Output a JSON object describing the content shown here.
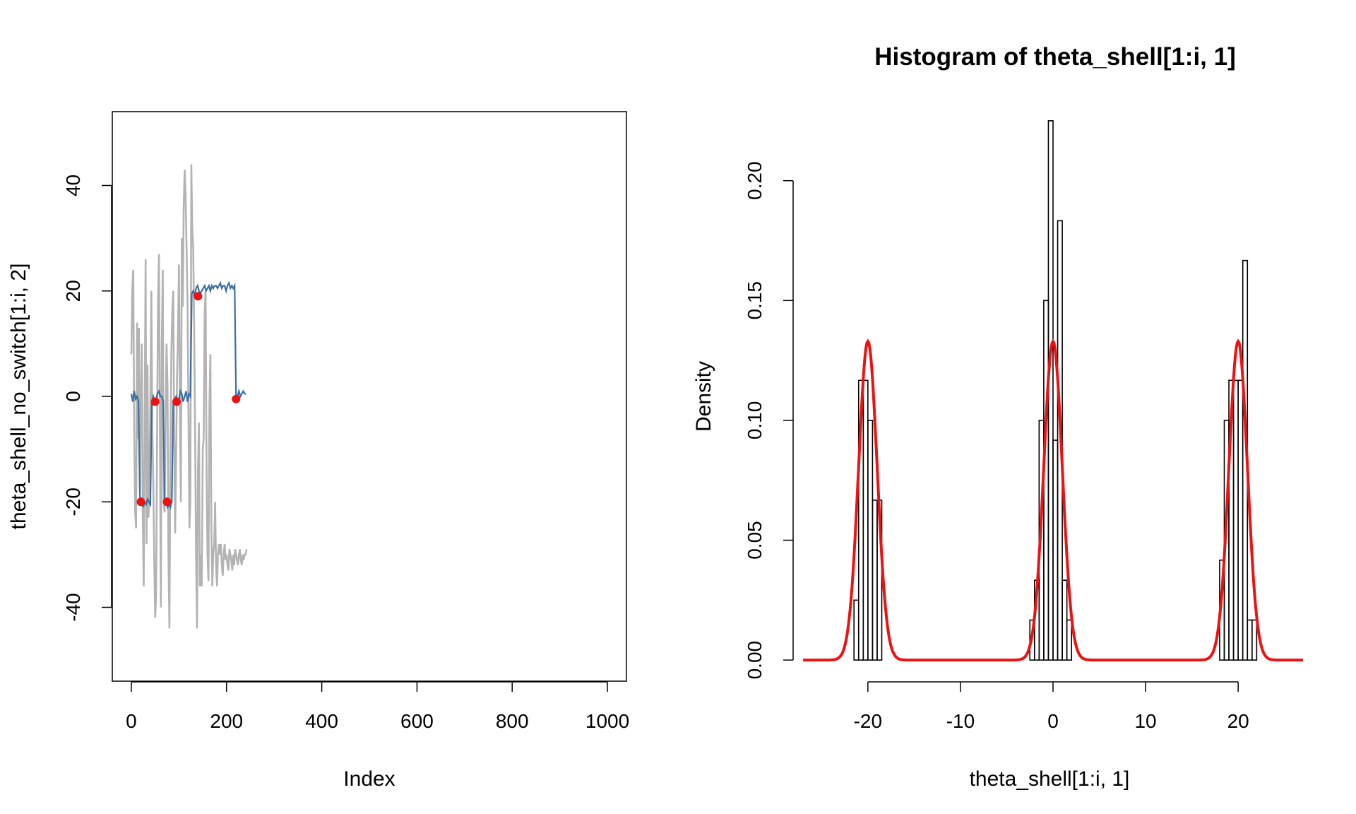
{
  "chart_data": [
    {
      "type": "line",
      "title": "",
      "xlabel": "Index",
      "ylabel": "theta_shell_no_switch[1:i, 2]",
      "xlim": [
        -40,
        1040
      ],
      "ylim": [
        -54,
        54
      ],
      "x_ticks": [
        0,
        200,
        400,
        600,
        800,
        1000
      ],
      "x_tick_labels": [
        "0",
        "200",
        "400",
        "600",
        "800",
        "1000"
      ],
      "y_ticks": [
        -40,
        -20,
        0,
        20,
        40
      ],
      "y_tick_labels": [
        "-40",
        "-20",
        "0",
        "20",
        "40"
      ],
      "grid": false,
      "series": [
        {
          "color": "#b3b3b3",
          "x": [
            0,
            2,
            4,
            6,
            8,
            10,
            12,
            14,
            16,
            18,
            20,
            22,
            24,
            26,
            28,
            30,
            32,
            34,
            36,
            38,
            40,
            42,
            44,
            46,
            48,
            50,
            52,
            54,
            56,
            58,
            60,
            62,
            64,
            66,
            68,
            70,
            72,
            74,
            76,
            78,
            80,
            82,
            84,
            86,
            88,
            90,
            92,
            94,
            96,
            98,
            100,
            102,
            104,
            106,
            108,
            110,
            112,
            114,
            116,
            118,
            120,
            122,
            124,
            126,
            128,
            130,
            132,
            134,
            136,
            138,
            140,
            142,
            144,
            146,
            148,
            150,
            152,
            154,
            156,
            158,
            160,
            162,
            164,
            166,
            168,
            170,
            172,
            174,
            176,
            178,
            180,
            182,
            184,
            186,
            188,
            190,
            192,
            194,
            196,
            198,
            200,
            202,
            204,
            206,
            208,
            210,
            212,
            214,
            216,
            218,
            220,
            222,
            224,
            226,
            228,
            230,
            232,
            234,
            236,
            238,
            240,
            242
          ],
          "y": [
            8,
            20,
            24,
            -6,
            -22,
            -25,
            14,
            -8,
            13,
            -18,
            -2,
            10,
            -22,
            -36,
            -5,
            26,
            -28,
            6,
            -23,
            -18,
            -1,
            20,
            -6,
            -16,
            -30,
            -42,
            -38,
            -8,
            18,
            27,
            -5,
            -40,
            10,
            24,
            -20,
            -22,
            -5,
            10,
            2,
            -30,
            -44,
            -12,
            8,
            16,
            20,
            -6,
            -26,
            -12,
            4,
            12,
            25,
            -2,
            -20,
            30,
            17,
            36,
            43,
            38,
            28,
            18,
            -4,
            -25,
            -20,
            44,
            32,
            28,
            13,
            -8,
            -30,
            -44,
            -14,
            -5,
            -36,
            -30,
            -36,
            -10,
            -8,
            16,
            20,
            -15,
            -30,
            -35,
            -2,
            8,
            -24,
            -36,
            -30,
            -28,
            -20,
            -32,
            -36,
            -30,
            -28,
            -30,
            -28,
            -32,
            -34,
            -30,
            -28,
            -31,
            -30,
            -32,
            -33,
            -29,
            -30,
            -31,
            -33,
            -30,
            -32,
            -29,
            -30,
            -31,
            -32,
            -30,
            -29,
            -31,
            -32,
            -30,
            -31,
            -30,
            -30,
            -29
          ]
        },
        {
          "color": "#3a6ea5",
          "x": [
            0,
            3,
            6,
            9,
            12,
            15,
            18,
            20,
            22,
            25,
            28,
            31,
            34,
            37,
            40,
            43,
            46,
            49,
            52,
            55,
            58,
            61,
            64,
            67,
            70,
            73,
            76,
            79,
            82,
            85,
            88,
            91,
            94,
            97,
            100,
            103,
            106,
            109,
            112,
            115,
            118,
            121,
            124,
            127,
            130,
            133,
            136,
            139,
            142,
            145,
            148,
            151,
            154,
            157,
            160,
            163,
            166,
            169,
            172,
            175,
            178,
            181,
            184,
            187,
            190,
            193,
            196,
            199,
            202,
            205,
            208,
            211,
            214,
            217,
            220,
            223,
            226,
            229,
            232,
            235,
            238,
            241
          ],
          "y": [
            0.5,
            -1,
            1,
            -0.5,
            0,
            -1,
            -19,
            -20,
            -19.5,
            -21,
            -20,
            -20.5,
            -19.5,
            -20,
            -20.5,
            -1,
            0,
            -1,
            -0.5,
            0.5,
            1,
            0,
            0,
            -1,
            -20,
            -19.5,
            -21,
            -20.5,
            -21,
            -20,
            -1,
            -0.5,
            0,
            -1,
            -0.5,
            1,
            0.5,
            -1,
            0,
            1,
            -1,
            0.5,
            0,
            19.5,
            20,
            19,
            20.5,
            21,
            20,
            19.5,
            20,
            20.5,
            21,
            20,
            20.5,
            21,
            20,
            21,
            20.5,
            21,
            21,
            20.5,
            21,
            21.5,
            20.5,
            21,
            21,
            20,
            21,
            21.5,
            20.5,
            21,
            20.5,
            21,
            -0.5,
            0,
            1,
            0,
            0.5,
            1,
            0.5,
            0.5
          ]
        }
      ],
      "points": {
        "color": "#ee1111",
        "x": [
          20,
          50,
          75,
          95,
          140,
          220
        ],
        "y": [
          -20,
          -1,
          -20,
          -1,
          19,
          -0.5
        ]
      }
    },
    {
      "type": "bar",
      "title": "Histogram of theta_shell[1:i, 1]",
      "xlabel": "theta_shell[1:i, 1]",
      "ylabel": "Density",
      "xlim": [
        -28,
        28
      ],
      "ylim": [
        -0.0088,
        0.2288
      ],
      "x_ticks": [
        -20,
        -10,
        0,
        10,
        20
      ],
      "x_tick_labels": [
        "-20",
        "-10",
        "0",
        "10",
        "20"
      ],
      "y_ticks": [
        0,
        0.05,
        0.1,
        0.15,
        0.2
      ],
      "y_tick_labels": [
        "0.00",
        "0.05",
        "0.10",
        "0.15",
        "0.20"
      ],
      "grid": false,
      "bin_width": 0.5,
      "bins": [
        [
          -21.5,
          0.025
        ],
        [
          -21.0,
          0.1167
        ],
        [
          -20.5,
          0.1167
        ],
        [
          -20.0,
          0.1
        ],
        [
          -19.5,
          0.0667
        ],
        [
          -19.0,
          0.0667
        ],
        [
          -2.5,
          0.0167
        ],
        [
          -2.0,
          0.0333
        ],
        [
          -1.5,
          0.1
        ],
        [
          -1.0,
          0.15
        ],
        [
          -0.5,
          0.225
        ],
        [
          0.0,
          0.0917
        ],
        [
          0.5,
          0.1833
        ],
        [
          1.0,
          0.0333
        ],
        [
          1.5,
          0.0167
        ],
        [
          18.0,
          0.0417
        ],
        [
          18.5,
          0.1
        ],
        [
          19.0,
          0.1167
        ],
        [
          19.5,
          0.1167
        ],
        [
          20.0,
          0.1167
        ],
        [
          20.5,
          0.1667
        ],
        [
          21.0,
          0.0167
        ],
        [
          21.5,
          0.0167
        ]
      ],
      "density_curve": {
        "color": "#ee1111",
        "mixture_means": [
          -20,
          0,
          20
        ],
        "mixture_sd": 1,
        "mixture_weight": 0.3333,
        "x_range": [
          -27,
          27
        ]
      }
    }
  ]
}
